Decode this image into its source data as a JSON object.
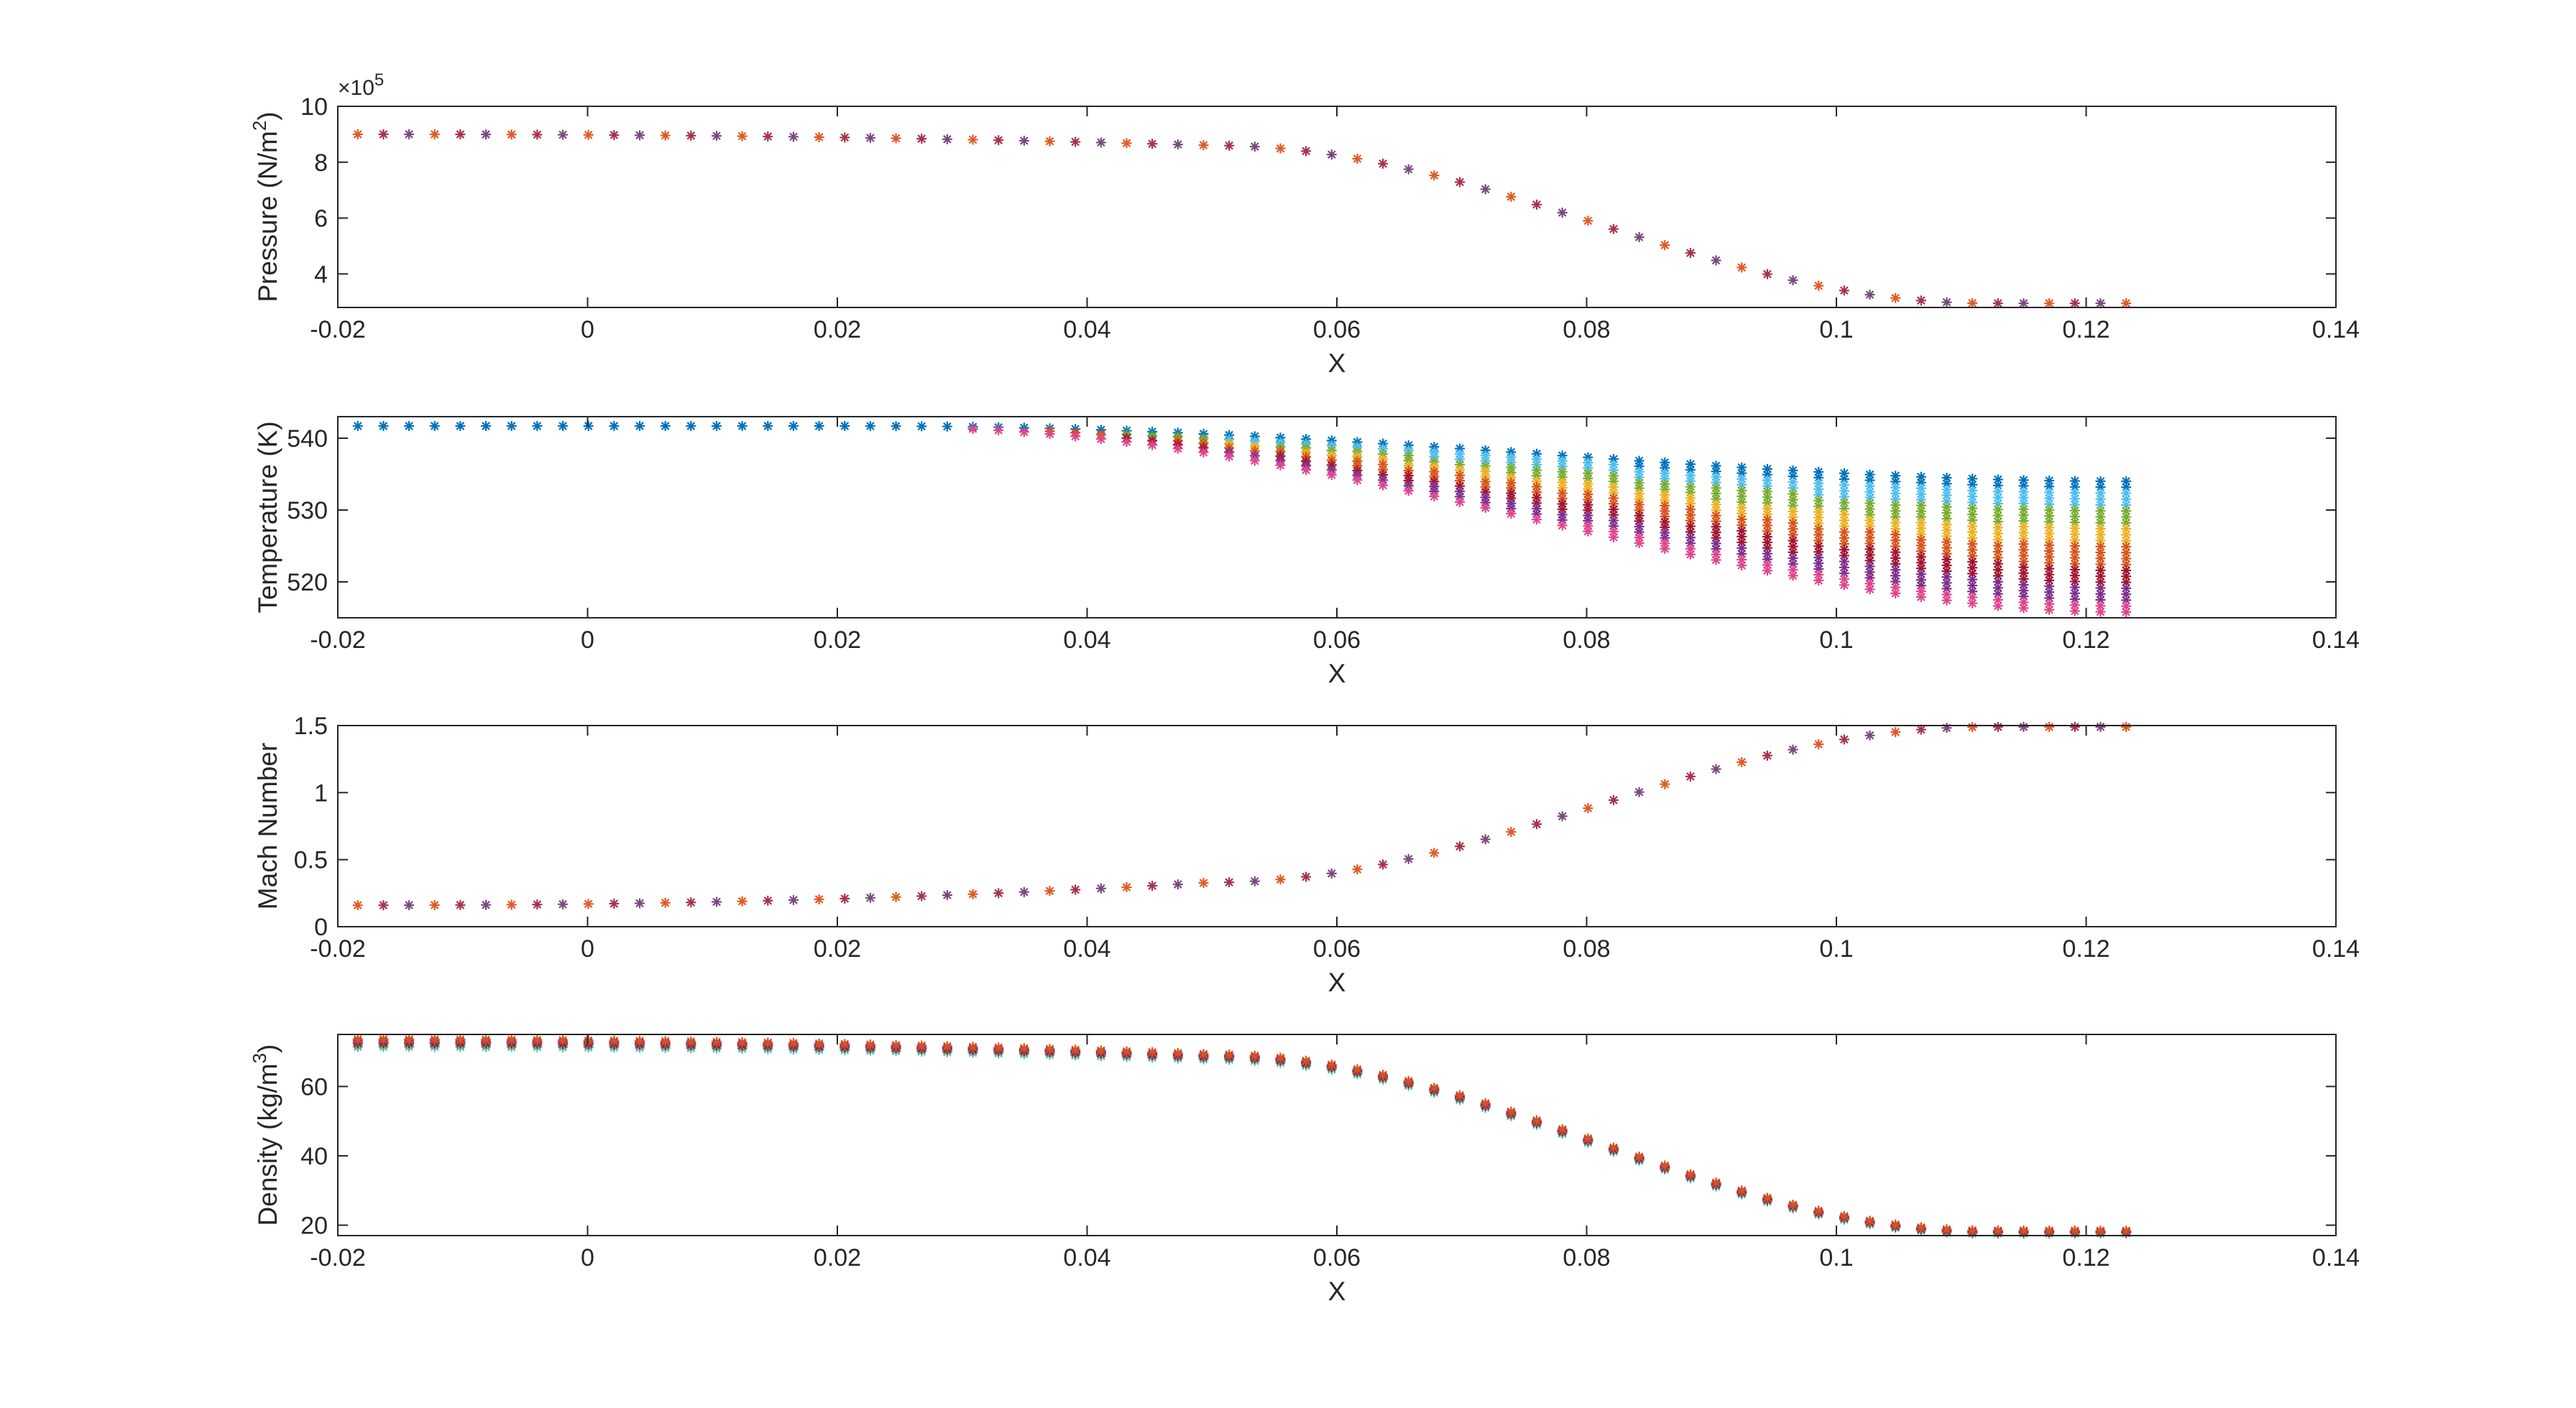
{
  "chart_data": [
    {
      "type": "scatter",
      "marker": "asterisk",
      "ylabel": "Pressure (N/m²)",
      "ylabel_parts": {
        "main": "Pressure (N/m",
        "sup": "2",
        "end": ")"
      },
      "exponent_label": {
        "base": "×10",
        "sup": "5"
      },
      "xlabel": "X",
      "xlim": [
        -0.02,
        0.14
      ],
      "ylim": [
        2.8,
        10
      ],
      "xticks": [
        -0.02,
        0,
        0.02,
        0.04,
        0.06,
        0.08,
        0.1,
        0.12,
        0.14
      ],
      "xtick_labels": [
        "-0.02",
        "0",
        "0.02",
        "0.04",
        "0.06",
        "0.08",
        "0.1",
        "0.12",
        "0.14"
      ],
      "yticks": [
        4,
        6,
        8,
        10
      ],
      "ytick_labels": [
        "4",
        "6",
        "8",
        "10"
      ],
      "profile": {
        "x_start": -0.0184,
        "x_throat": 0.05,
        "x_end": 0.1232,
        "y_inlet": 9.0,
        "y_throat": 8.6,
        "y_min_x": 0.112,
        "y_min": 2.95,
        "y_end": 2.95
      },
      "spread": [
        0,
        0
      ],
      "colors": [
        "#e15a24",
        "#a8324a",
        "#7a4a7f"
      ],
      "grid": false
    },
    {
      "type": "scatter",
      "marker": "asterisk",
      "ylabel": "Temperature (K)",
      "ylabel_parts": {
        "main": "Temperature (K)",
        "sup": "",
        "end": ""
      },
      "xlabel": "X",
      "xlim": [
        -0.02,
        0.14
      ],
      "ylim": [
        515,
        543
      ],
      "xticks": [
        -0.02,
        0,
        0.02,
        0.04,
        0.06,
        0.08,
        0.1,
        0.12,
        0.14
      ],
      "xtick_labels": [
        "-0.02",
        "0",
        "0.02",
        "0.04",
        "0.06",
        "0.08",
        "0.1",
        "0.12",
        "0.14"
      ],
      "yticks": [
        520,
        530,
        540
      ],
      "ytick_labels": [
        "520",
        "530",
        "540"
      ],
      "profile": {
        "x_start": -0.0184,
        "x_throat": 0.05,
        "x_end": 0.1232,
        "y_top_start": 541.7,
        "y_top_end": 534.0,
        "y_bot_start": 541.7,
        "y_bot_end": 515.8
      },
      "colors": [
        "#0072bd",
        "#4dbeee",
        "#77ac30",
        "#edb120",
        "#d95319",
        "#a2142f",
        "#7e2f8e",
        "#e0458c"
      ],
      "grid": false
    },
    {
      "type": "scatter",
      "marker": "asterisk",
      "ylabel": "Mach Number",
      "ylabel_parts": {
        "main": "Mach Number",
        "sup": "",
        "end": ""
      },
      "xlabel": "X",
      "xlim": [
        -0.02,
        0.14
      ],
      "ylim": [
        0,
        1.5
      ],
      "xticks": [
        -0.02,
        0,
        0.02,
        0.04,
        0.06,
        0.08,
        0.1,
        0.12,
        0.14
      ],
      "xtick_labels": [
        "-0.02",
        "0",
        "0.02",
        "0.04",
        "0.06",
        "0.08",
        "0.1",
        "0.12",
        "0.14"
      ],
      "yticks": [
        0,
        0.5,
        1,
        1.5
      ],
      "ytick_labels": [
        "0",
        "0.5",
        "1",
        "1.5"
      ],
      "profile": {
        "x_start": -0.0184,
        "x_throat": 0.05,
        "x_end": 0.1232,
        "y_inlet": 0.16,
        "y_throat": 0.33,
        "y_min_x": 0.112,
        "y_min": 1.49,
        "y_end": 1.49
      },
      "colors": [
        "#e15a24",
        "#a8324a",
        "#7a4a7f"
      ],
      "grid": false
    },
    {
      "type": "scatter",
      "marker": "asterisk",
      "ylabel": "Density (kg/m³)",
      "ylabel_parts": {
        "main": "Density (kg/m",
        "sup": "3",
        "end": ")"
      },
      "xlabel": "X",
      "xlim": [
        -0.02,
        0.14
      ],
      "ylim": [
        17,
        75
      ],
      "xticks": [
        -0.02,
        0,
        0.02,
        0.04,
        0.06,
        0.08,
        0.1,
        0.12,
        0.14
      ],
      "xtick_labels": [
        "-0.02",
        "0",
        "0.02",
        "0.04",
        "0.06",
        "0.08",
        "0.1",
        "0.12",
        "0.14"
      ],
      "yticks": [
        20,
        40,
        60
      ],
      "ytick_labels": [
        "20",
        "40",
        "60"
      ],
      "profile": {
        "x_start": -0.0184,
        "x_throat": 0.05,
        "x_end": 0.1232,
        "y_inlet": 72.5,
        "y_throat": 68.5,
        "y_min_x": 0.112,
        "y_min": 18.0,
        "y_end": 18.0
      },
      "spread": [
        2.2,
        0.8
      ],
      "colors": [
        "#4dbeee",
        "#77ac30",
        "#a2142f",
        "#7e2f8e",
        "#d95319"
      ],
      "grid": false
    }
  ]
}
